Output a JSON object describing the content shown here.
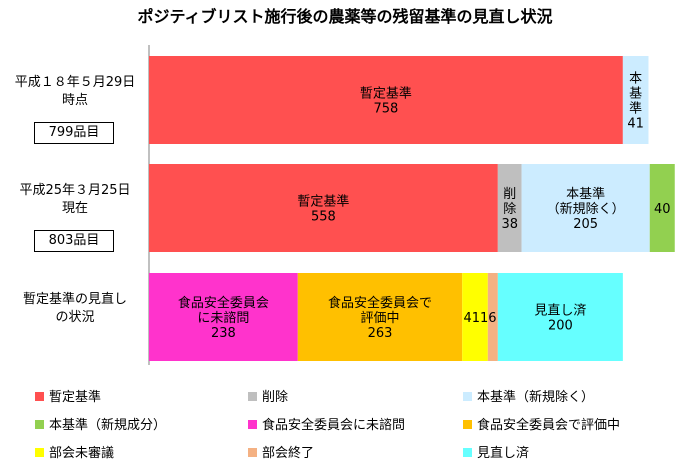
{
  "chart_data": {
    "type": "bar",
    "orientation": "horizontal",
    "stacked": true,
    "title": "ポジティブリスト施行後の農薬等の残留基準の見直し状況",
    "categories": [
      {
        "label_lines": [
          "平成１８年５月29日",
          "時点"
        ],
        "total": "799品目"
      },
      {
        "label_lines": [
          "平成25年３月25日",
          "現在"
        ],
        "total": "803品目"
      },
      {
        "label_lines": [
          "暫定基準の見直し",
          "の状況"
        ],
        "total": ""
      }
    ],
    "rows": [
      [
        {
          "key": "zantei",
          "name": "暫定基準",
          "value": 758,
          "label_lines": [
            "暫定基準",
            "758"
          ]
        },
        {
          "key": "hon",
          "name": "本基準",
          "value": 41,
          "label_lines": [
            "本",
            "基",
            "準",
            "41"
          ]
        }
      ],
      [
        {
          "key": "zantei",
          "name": "暫定基準",
          "value": 558,
          "label_lines": [
            "暫定基準",
            "558"
          ]
        },
        {
          "key": "sakujo",
          "name": "削除",
          "value": 38,
          "label_lines": [
            "削",
            "除",
            "38"
          ]
        },
        {
          "key": "hon_shinki",
          "name": "本基準（新規除く）",
          "value": 205,
          "label_lines": [
            "本基準",
            "（新規除く）",
            "205"
          ]
        },
        {
          "key": "hon_shinki_seibun",
          "name": "本基準（新規成分）",
          "value": 40,
          "label_lines": [
            "40"
          ]
        }
      ],
      [
        {
          "key": "mishimon",
          "name": "食品安全委員会に未諮問",
          "value": 238,
          "label_lines": [
            "食品安全委員会",
            "に未諮問",
            "238"
          ]
        },
        {
          "key": "hyoka",
          "name": "食品安全委員会で評価中",
          "value": 263,
          "label_lines": [
            "食品安全委員会で",
            "評価中",
            "263"
          ]
        },
        {
          "key": "bukai_mishingi",
          "name": "部会未審議",
          "value": 41,
          "label_lines": []
        },
        {
          "key": "bukai_shuryo",
          "name": "部会終了",
          "value": 16,
          "label_lines": []
        },
        {
          "key": "minaoshi",
          "name": "見直し済",
          "value": 200,
          "label_lines": [
            "見直し済",
            "200"
          ]
        }
      ]
    ],
    "small_values_label": "4116",
    "xlim": [
      0,
      803
    ],
    "grid": false,
    "legend_position": "bottom",
    "legend": [
      {
        "key": "zantei",
        "label": "暫定基準",
        "color": "#FF5050"
      },
      {
        "key": "sakujo",
        "label": "削除",
        "color": "#BFBFBF"
      },
      {
        "key": "hon",
        "label": "本基準（新規除く）",
        "color": "#CCECFF"
      },
      {
        "key": "hon_shinki_seibun",
        "label": "本基準（新規成分）",
        "color": "#92D050"
      },
      {
        "key": "mishimon",
        "label": "食品安全委員会に未諮問",
        "color": "#FF33CC"
      },
      {
        "key": "hyoka",
        "label": "食品安全委員会で評価中",
        "color": "#FFC000"
      },
      {
        "key": "bukai_mishingi",
        "label": "部会未審議",
        "color": "#FFFF00"
      },
      {
        "key": "bukai_shuryo",
        "label": "部会終了",
        "color": "#F4B183"
      },
      {
        "key": "minaoshi",
        "label": "見直し済",
        "color": "#66FFFF"
      }
    ],
    "segment_colors": {
      "zantei": "#FF5050",
      "hon": "#CCECFF",
      "sakujo": "#BFBFBF",
      "hon_shinki": "#CCECFF",
      "hon_shinki_seibun": "#92D050",
      "mishimon": "#FF33CC",
      "hyoka": "#FFC000",
      "bukai_mishingi": "#FFFF00",
      "bukai_shuryo": "#F4B183",
      "minaoshi": "#66FFFF"
    }
  }
}
